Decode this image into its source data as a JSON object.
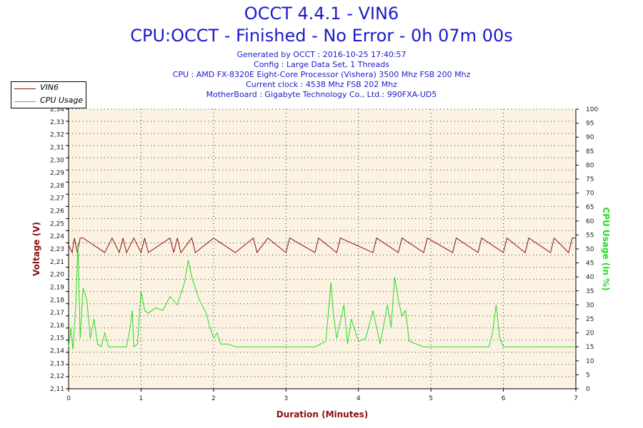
{
  "header": {
    "title": "OCCT 4.4.1 - VIN6",
    "subtitle": "CPU:OCCT - Finished - No Error - 0h 07m 00s",
    "info": [
      "Generated by OCCT : 2016-10-25 17:40:57",
      "Config : Large Data Set, 1 Threads",
      "CPU : AMD FX-8320E Eight-Core Processor (Vishera) 3500 Mhz FSB 200 Mhz",
      "Current clock : 4538 Mhz FSB 202 Mhz",
      "MotherBoard : Gigabyte Technology Co., Ltd.: 990FXA-UD5"
    ]
  },
  "colors": {
    "voltage": "#8b1010",
    "cpu": "#22dd22",
    "plot_bg": "#fbf2e2",
    "title": "#1a1acc"
  },
  "chart_data": {
    "type": "line",
    "xlabel": "Duration (Minutes)",
    "ylabel": "Voltage (V)",
    "y2label": "CPU Usage (in %)",
    "xlim": [
      0,
      7
    ],
    "ylim": [
      2.11,
      2.34
    ],
    "y2lim": [
      0,
      100
    ],
    "x_ticks": [
      "0",
      "1",
      "2",
      "3",
      "4",
      "5",
      "6",
      "7"
    ],
    "y_ticks": [
      "2,11",
      "2,12",
      "2,13",
      "2,14",
      "2,15",
      "2,16",
      "2,17",
      "2,18",
      "2,19",
      "2,20",
      "2,21",
      "2,23",
      "2,24",
      "2,25",
      "2,26",
      "2,27",
      "2,28",
      "2,29",
      "2,30",
      "2,31",
      "2,32",
      "2,33",
      "2,34"
    ],
    "y2_ticks": [
      "0",
      "5",
      "10",
      "15",
      "20",
      "25",
      "30",
      "35",
      "40",
      "45",
      "50",
      "55",
      "60",
      "65",
      "70",
      "75",
      "80",
      "85",
      "90",
      "95",
      "100"
    ],
    "grid": true,
    "legend": "top-left",
    "series": [
      {
        "name": "VIN6",
        "axis": "left",
        "x": [
          0,
          0.05,
          0.08,
          0.12,
          0.16,
          0.2,
          0.5,
          0.6,
          0.7,
          0.75,
          0.8,
          0.9,
          1.0,
          1.05,
          1.1,
          1.4,
          1.45,
          1.5,
          1.55,
          1.7,
          1.75,
          2.0,
          2.3,
          2.55,
          2.6,
          2.75,
          3.0,
          3.05,
          3.4,
          3.45,
          3.7,
          3.75,
          4.2,
          4.25,
          4.55,
          4.6,
          4.9,
          4.95,
          5.3,
          5.35,
          5.65,
          5.7,
          6.0,
          6.05,
          6.3,
          6.35,
          6.65,
          6.7,
          6.9,
          6.95,
          7.0
        ],
        "values": [
          2.228,
          2.222,
          2.234,
          2.222,
          2.234,
          2.234,
          2.222,
          2.234,
          2.222,
          2.234,
          2.222,
          2.234,
          2.222,
          2.234,
          2.222,
          2.234,
          2.222,
          2.234,
          2.222,
          2.234,
          2.222,
          2.234,
          2.222,
          2.234,
          2.222,
          2.234,
          2.222,
          2.234,
          2.222,
          2.234,
          2.222,
          2.234,
          2.222,
          2.234,
          2.222,
          2.234,
          2.222,
          2.234,
          2.222,
          2.234,
          2.222,
          2.234,
          2.222,
          2.234,
          2.222,
          2.234,
          2.222,
          2.234,
          2.222,
          2.234,
          2.234
        ]
      },
      {
        "name": "CPU Usage",
        "axis": "right",
        "x": [
          0,
          0.03,
          0.06,
          0.1,
          0.13,
          0.16,
          0.2,
          0.25,
          0.3,
          0.35,
          0.4,
          0.45,
          0.5,
          0.55,
          0.6,
          0.7,
          0.8,
          0.85,
          0.88,
          0.9,
          0.95,
          1.0,
          1.05,
          1.1,
          1.2,
          1.3,
          1.4,
          1.5,
          1.6,
          1.65,
          1.7,
          1.75,
          1.8,
          1.9,
          1.95,
          2.0,
          2.05,
          2.1,
          2.2,
          2.3,
          2.5,
          2.8,
          3.0,
          3.2,
          3.4,
          3.55,
          3.62,
          3.65,
          3.7,
          3.8,
          3.85,
          3.9,
          4.0,
          4.1,
          4.2,
          4.3,
          4.4,
          4.45,
          4.5,
          4.55,
          4.6,
          4.65,
          4.7,
          4.8,
          4.9,
          5.0,
          5.2,
          5.5,
          5.8,
          5.85,
          5.9,
          5.95,
          6.0,
          6.1,
          6.3,
          6.6,
          6.9,
          7.0
        ],
        "values": [
          15,
          22,
          14,
          30,
          52,
          18,
          36,
          32,
          18,
          25,
          16,
          15,
          20,
          15,
          15,
          15,
          15,
          22,
          28,
          15,
          16,
          35,
          28,
          27,
          29,
          28,
          33,
          30,
          38,
          46,
          40,
          36,
          32,
          27,
          22,
          18,
          20,
          16,
          16,
          15,
          15,
          15,
          15,
          15,
          15,
          17,
          38,
          28,
          18,
          30,
          16,
          25,
          17,
          18,
          28,
          16,
          30,
          22,
          40,
          32,
          26,
          28,
          17,
          16,
          15,
          15,
          15,
          15,
          15,
          20,
          30,
          18,
          15,
          15,
          15,
          15,
          15,
          15
        ]
      }
    ]
  }
}
